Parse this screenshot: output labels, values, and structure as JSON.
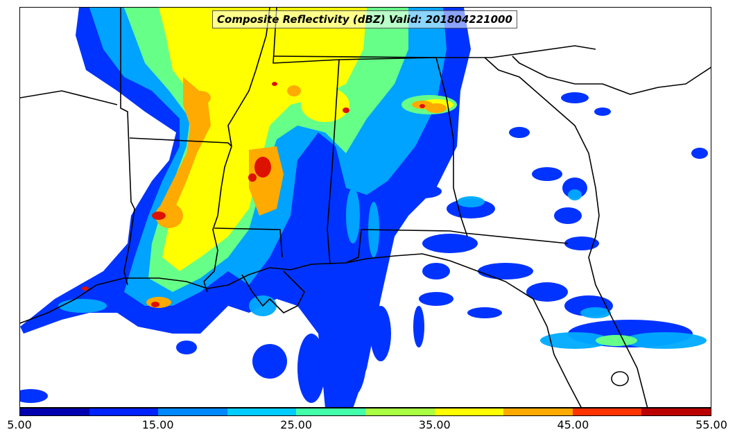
{
  "title": "Composite Reflectivity (dBZ) Valid: 201804221000",
  "colorbar": {
    "colors": [
      "#0000b0",
      "#0022ff",
      "#0088ff",
      "#00ccff",
      "#44ffaa",
      "#aaff44",
      "#ffff00",
      "#ffaa00",
      "#ff3300",
      "#bb0000"
    ],
    "tick_labels": [
      "5.00",
      "15.00",
      "25.00",
      "35.00",
      "45.00",
      "55.00"
    ]
  },
  "map": {
    "background": "#ffffff",
    "boundary_color": "#000000"
  }
}
